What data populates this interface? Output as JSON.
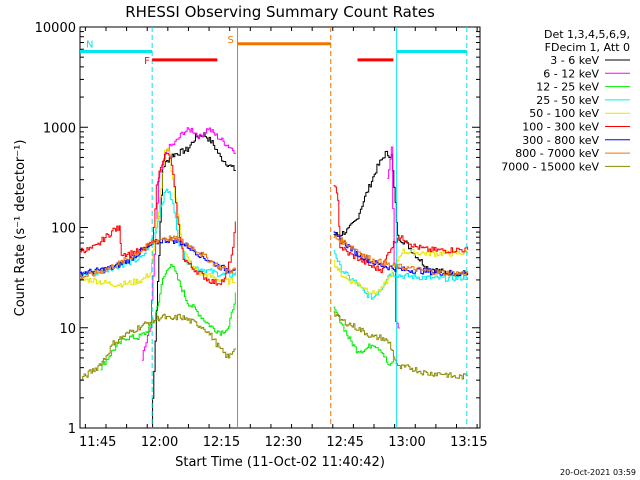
{
  "chart_data": {
    "type": "line",
    "title": "RHESSI Observing Summary Count Rates",
    "xlabel": "Start Time (11-Oct-02 11:40:42)",
    "ylabel": "Count Rate (s⁻¹ detector⁻¹)",
    "yscale": "log",
    "ylim": [
      1,
      10000
    ],
    "xlim_minutes": [
      0,
      97
    ],
    "x_ticks": [
      {
        "t": 4.3,
        "label": "11:45"
      },
      {
        "t": 19.3,
        "label": "12:00"
      },
      {
        "t": 34.3,
        "label": "12:15"
      },
      {
        "t": 49.3,
        "label": "12:30"
      },
      {
        "t": 64.3,
        "label": "12:45"
      },
      {
        "t": 79.3,
        "label": "13:00"
      },
      {
        "t": 94.3,
        "label": "13:15"
      }
    ],
    "y_ticks": [
      {
        "v": 1,
        "label": "1"
      },
      {
        "v": 10,
        "label": "10"
      },
      {
        "v": 100,
        "label": "100"
      },
      {
        "v": 1000,
        "label": "1000"
      },
      {
        "v": 10000,
        "label": "10000"
      }
    ],
    "legend_header": [
      "Det 1,3,4,5,6,9,",
      "FDecim 1, Att 0"
    ],
    "footer_date": "20-Oct-2021 03:59",
    "flags": [
      {
        "code": "N",
        "color": "#00e5ee",
        "level": 5700,
        "segments": [
          [
            0,
            17.5
          ],
          [
            76.8,
            93.8
          ]
        ]
      },
      {
        "code": "F",
        "color": "#ff0000",
        "level": 4700,
        "segments": [
          [
            17.5,
            33.3
          ],
          [
            67.3,
            76.0
          ]
        ]
      },
      {
        "code": "S",
        "color": "#ee7600",
        "level": 6800,
        "segments": [
          [
            38.2,
            60.8
          ]
        ]
      }
    ],
    "event_lines": [
      {
        "t": 17.5,
        "color": "#00e5ee",
        "dashed": true
      },
      {
        "t": 38.2,
        "color": "#ee7600",
        "dashed": false
      },
      {
        "t": 60.8,
        "color": "#ee7600",
        "dashed": true
      },
      {
        "t": 76.8,
        "color": "#00e5ee",
        "dashed": false
      },
      {
        "t": 93.8,
        "color": "#00e5ee",
        "dashed": true
      }
    ],
    "series": [
      {
        "name": "3 - 6 keV",
        "color": "#000000",
        "values": [
          [
            17.3,
            1
          ],
          [
            18.5,
            15
          ],
          [
            20,
            400
          ],
          [
            22,
            520
          ],
          [
            24,
            560
          ],
          [
            26,
            600
          ],
          [
            28,
            800
          ],
          [
            30,
            850
          ],
          [
            32,
            700
          ],
          [
            34,
            500
          ],
          [
            36,
            420
          ],
          [
            38,
            360
          ],
          [
            61.5,
            85
          ],
          [
            63,
            85
          ],
          [
            65,
            95
          ],
          [
            67,
            120
          ],
          [
            69,
            200
          ],
          [
            72,
            400
          ],
          [
            74,
            550
          ],
          [
            75.5,
            520
          ],
          [
            77,
            80
          ],
          [
            79,
            70
          ],
          [
            81,
            55
          ],
          [
            84,
            40
          ],
          [
            88,
            36
          ],
          [
            91,
            35
          ],
          [
            94,
            35
          ]
        ]
      },
      {
        "name": "6 - 12 keV",
        "color": "#ff00ff",
        "values": [
          [
            15,
            5
          ],
          [
            17,
            10
          ],
          [
            19,
            300
          ],
          [
            21,
            600
          ],
          [
            23,
            700
          ],
          [
            25,
            900
          ],
          [
            27,
            950
          ],
          [
            29,
            800
          ],
          [
            31,
            980
          ],
          [
            33,
            820
          ],
          [
            35,
            700
          ],
          [
            37,
            600
          ],
          [
            38,
            560
          ],
          [
            74.5,
            300
          ],
          [
            75.5,
            600
          ],
          [
            76.5,
            12
          ],
          [
            77.5,
            10
          ]
        ]
      },
      {
        "name": "12 - 25 keV",
        "color": "#00ee00",
        "values": [
          [
            5,
            4
          ],
          [
            8,
            6
          ],
          [
            11,
            8
          ],
          [
            14,
            8
          ],
          [
            16,
            9
          ],
          [
            18,
            12
          ],
          [
            20,
            30
          ],
          [
            22,
            45
          ],
          [
            24,
            28
          ],
          [
            26,
            18
          ],
          [
            28,
            15
          ],
          [
            30,
            12
          ],
          [
            32,
            10
          ],
          [
            34,
            9
          ],
          [
            36,
            10
          ],
          [
            38,
            25
          ],
          [
            61.5,
            15
          ],
          [
            63,
            12
          ],
          [
            65,
            8
          ],
          [
            67,
            6
          ],
          [
            69,
            6
          ],
          [
            71,
            7
          ],
          [
            73,
            6
          ],
          [
            75,
            4
          ],
          [
            76,
            5
          ]
        ]
      },
      {
        "name": "25 - 50 keV",
        "color": "#00eeee",
        "values": [
          [
            0,
            35
          ],
          [
            4,
            35
          ],
          [
            8,
            40
          ],
          [
            12,
            45
          ],
          [
            15,
            50
          ],
          [
            17,
            70
          ],
          [
            18.5,
            100
          ],
          [
            19.5,
            160
          ],
          [
            21,
            250
          ],
          [
            22.5,
            170
          ],
          [
            24,
            70
          ],
          [
            26,
            45
          ],
          [
            28,
            40
          ],
          [
            30,
            38
          ],
          [
            33,
            35
          ],
          [
            36,
            33
          ],
          [
            38,
            35
          ],
          [
            61.5,
            60
          ],
          [
            63,
            40
          ],
          [
            65,
            32
          ],
          [
            67,
            28
          ],
          [
            69,
            22
          ],
          [
            71,
            20
          ],
          [
            73,
            25
          ],
          [
            75,
            35
          ],
          [
            78,
            33
          ],
          [
            82,
            32
          ],
          [
            86,
            31
          ],
          [
            90,
            31
          ],
          [
            94,
            32
          ]
        ]
      },
      {
        "name": "50 - 100 keV",
        "color": "#e5e500",
        "values": [
          [
            0,
            30
          ],
          [
            3,
            30
          ],
          [
            6,
            28
          ],
          [
            9,
            27
          ],
          [
            12,
            28
          ],
          [
            15,
            30
          ],
          [
            17,
            35
          ],
          [
            19,
            150
          ],
          [
            20.5,
            550
          ],
          [
            21.5,
            600
          ],
          [
            23,
            200
          ],
          [
            25,
            60
          ],
          [
            27,
            40
          ],
          [
            29,
            35
          ],
          [
            31,
            33
          ],
          [
            34,
            30
          ],
          [
            36,
            29
          ],
          [
            38,
            30
          ],
          [
            61.5,
            45
          ],
          [
            63,
            35
          ],
          [
            65,
            30
          ],
          [
            67,
            28
          ],
          [
            69,
            25
          ],
          [
            71,
            22
          ],
          [
            73,
            24
          ],
          [
            75,
            32
          ],
          [
            78,
            58
          ],
          [
            82,
            56
          ],
          [
            86,
            55
          ],
          [
            90,
            55
          ],
          [
            94,
            56
          ]
        ]
      },
      {
        "name": "100 - 300 keV",
        "color": "#ff0000",
        "values": [
          [
            0,
            60
          ],
          [
            2,
            60
          ],
          [
            4,
            65
          ],
          [
            6,
            80
          ],
          [
            7,
            85
          ],
          [
            8,
            95
          ],
          [
            9.5,
            98
          ],
          [
            10,
            55
          ],
          [
            12,
            55
          ],
          [
            14,
            58
          ],
          [
            16,
            62
          ],
          [
            17.5,
            70
          ],
          [
            18.5,
            250
          ],
          [
            19.5,
            420
          ],
          [
            20.5,
            520
          ],
          [
            21.5,
            540
          ],
          [
            22.5,
            350
          ],
          [
            23.5,
            120
          ],
          [
            25,
            50
          ],
          [
            27,
            40
          ],
          [
            29,
            35
          ],
          [
            31,
            30
          ],
          [
            33,
            28
          ],
          [
            35,
            30
          ],
          [
            37,
            60
          ],
          [
            38,
            160
          ],
          [
            61.5,
            280
          ],
          [
            62.5,
            180
          ],
          [
            63,
            65
          ],
          [
            65,
            55
          ],
          [
            67,
            50
          ],
          [
            69,
            45
          ],
          [
            71,
            40
          ],
          [
            73,
            38
          ],
          [
            75,
            60
          ],
          [
            77,
            80
          ],
          [
            79,
            75
          ],
          [
            81,
            65
          ],
          [
            84,
            60
          ],
          [
            88,
            59
          ],
          [
            91,
            60
          ],
          [
            94,
            60
          ]
        ]
      },
      {
        "name": "300 - 800 keV",
        "color": "#0000ff",
        "values": [
          [
            0,
            35
          ],
          [
            4,
            37
          ],
          [
            8,
            40
          ],
          [
            12,
            48
          ],
          [
            14,
            55
          ],
          [
            16,
            62
          ],
          [
            18,
            70
          ],
          [
            20,
            75
          ],
          [
            22,
            75
          ],
          [
            24,
            72
          ],
          [
            26,
            65
          ],
          [
            28,
            57
          ],
          [
            30,
            50
          ],
          [
            32,
            45
          ],
          [
            34,
            40
          ],
          [
            36,
            38
          ],
          [
            38,
            40
          ],
          [
            61.5,
            85
          ],
          [
            63,
            75
          ],
          [
            65,
            65
          ],
          [
            67,
            55
          ],
          [
            69,
            50
          ],
          [
            71,
            45
          ],
          [
            73,
            42
          ],
          [
            75,
            40
          ],
          [
            78,
            38
          ],
          [
            82,
            37
          ],
          [
            86,
            36
          ],
          [
            90,
            35
          ],
          [
            94,
            35
          ]
        ]
      },
      {
        "name": "800 - 7000 keV",
        "color": "#ee7600",
        "values": [
          [
            0,
            32
          ],
          [
            3,
            34
          ],
          [
            6,
            38
          ],
          [
            9,
            43
          ],
          [
            12,
            50
          ],
          [
            15,
            60
          ],
          [
            18,
            73
          ],
          [
            20,
            78
          ],
          [
            22,
            78
          ],
          [
            24,
            75
          ],
          [
            26,
            68
          ],
          [
            28,
            60
          ],
          [
            30,
            52
          ],
          [
            32,
            45
          ],
          [
            34,
            40
          ],
          [
            36,
            37
          ],
          [
            38,
            38
          ],
          [
            61.5,
            80
          ],
          [
            63,
            75
          ],
          [
            65,
            68
          ],
          [
            67,
            60
          ],
          [
            69,
            52
          ],
          [
            71,
            47
          ],
          [
            73,
            45
          ],
          [
            75,
            42
          ],
          [
            78,
            40
          ],
          [
            82,
            38
          ],
          [
            86,
            36
          ],
          [
            90,
            35
          ],
          [
            94,
            35
          ]
        ]
      },
      {
        "name": "7000 - 15000 keV",
        "color": "#8b8b00",
        "values": [
          [
            0,
            3
          ],
          [
            2,
            3.5
          ],
          [
            4,
            4
          ],
          [
            6,
            5
          ],
          [
            8,
            7
          ],
          [
            10,
            8
          ],
          [
            12,
            9
          ],
          [
            14,
            10
          ],
          [
            16,
            11
          ],
          [
            18,
            12
          ],
          [
            20,
            13
          ],
          [
            22,
            12
          ],
          [
            24,
            13
          ],
          [
            26,
            12
          ],
          [
            28,
            11
          ],
          [
            30,
            10
          ],
          [
            32,
            8
          ],
          [
            34,
            6
          ],
          [
            36,
            5
          ],
          [
            38,
            7
          ],
          [
            61.5,
            14
          ],
          [
            63,
            12
          ],
          [
            65,
            11
          ],
          [
            67,
            10
          ],
          [
            69,
            9
          ],
          [
            71,
            8
          ],
          [
            73,
            8
          ],
          [
            75,
            7
          ],
          [
            77,
            4
          ],
          [
            80,
            4
          ],
          [
            84,
            3.5
          ],
          [
            88,
            3.5
          ],
          [
            91,
            3.2
          ],
          [
            94,
            3.3
          ]
        ]
      }
    ]
  }
}
